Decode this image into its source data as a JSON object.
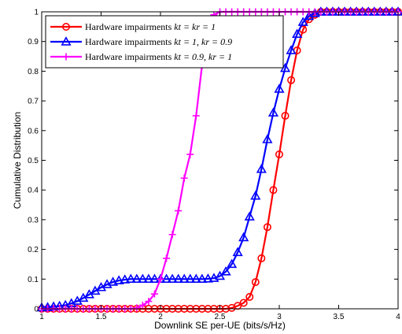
{
  "chart_data": {
    "type": "line",
    "title": "",
    "xlabel": "Downlink SE per-UE (bits/s/Hz)",
    "ylabel": "Cumulative Distribution",
    "xlim": [
      1,
      4
    ],
    "ylim": [
      0,
      1
    ],
    "xticks": [
      1,
      1.5,
      2,
      2.5,
      3,
      3.5,
      4
    ],
    "xtick_labels": [
      "1",
      "1.5",
      "2",
      "2.5",
      "3",
      "3.5",
      "4"
    ],
    "yticks": [
      0,
      0.1,
      0.2,
      0.3,
      0.4,
      0.5,
      0.6,
      0.7,
      0.8,
      0.9,
      1
    ],
    "ytick_labels": [
      "0",
      "0.1",
      "0.2",
      "0.3",
      "0.4",
      "0.5",
      "0.6",
      "0.7",
      "0.8",
      "0.9",
      "1"
    ],
    "grid": false,
    "legend_position": "top-left",
    "series": [
      {
        "name": "Hardware impairments k_t = k_r = 1",
        "legend_prefix": "Hardware impairments ",
        "legend_math": "kt = kr = 1",
        "color": "#ff0000",
        "marker": "circle",
        "x": [
          1.0,
          1.05,
          1.1,
          1.15,
          1.2,
          1.25,
          1.3,
          1.35,
          1.4,
          1.45,
          1.5,
          1.55,
          1.6,
          1.65,
          1.7,
          1.75,
          1.8,
          1.85,
          1.9,
          1.95,
          2.0,
          2.05,
          2.1,
          2.15,
          2.2,
          2.25,
          2.3,
          2.35,
          2.4,
          2.45,
          2.5,
          2.55,
          2.6,
          2.65,
          2.7,
          2.75,
          2.8,
          2.85,
          2.9,
          2.95,
          3.0,
          3.05,
          3.1,
          3.15,
          3.2,
          3.25,
          3.3,
          3.35,
          3.4,
          3.45,
          3.5,
          3.55,
          3.6,
          3.65,
          3.7,
          3.75,
          3.8,
          3.85,
          3.9,
          3.95,
          4.0
        ],
        "y": [
          0,
          0,
          0,
          0,
          0,
          0,
          0,
          0,
          0,
          0,
          0,
          0,
          0,
          0,
          0,
          0,
          0,
          0,
          0,
          0,
          0,
          0,
          0,
          0,
          0,
          0,
          0,
          0,
          0,
          0,
          0,
          0,
          0.003,
          0.01,
          0.02,
          0.04,
          0.09,
          0.17,
          0.275,
          0.4,
          0.52,
          0.65,
          0.77,
          0.87,
          0.94,
          0.975,
          0.99,
          1,
          1,
          1,
          1,
          1,
          1,
          1,
          1,
          1,
          1,
          1,
          1,
          1,
          1
        ]
      },
      {
        "name": "Hardware impairments k_t = 1, k_r = 0.9",
        "legend_prefix": "Hardware impairments ",
        "legend_math": "kt = 1, kr = 0.9",
        "color": "#0000ff",
        "marker": "triangle",
        "x": [
          1.0,
          1.05,
          1.1,
          1.15,
          1.2,
          1.25,
          1.3,
          1.35,
          1.4,
          1.45,
          1.5,
          1.55,
          1.6,
          1.65,
          1.7,
          1.75,
          1.8,
          1.85,
          1.9,
          1.95,
          2.0,
          2.05,
          2.1,
          2.15,
          2.2,
          2.25,
          2.3,
          2.35,
          2.4,
          2.45,
          2.5,
          2.55,
          2.6,
          2.65,
          2.7,
          2.75,
          2.8,
          2.85,
          2.9,
          2.95,
          3.0,
          3.05,
          3.1,
          3.15,
          3.2,
          3.25,
          3.3,
          3.35,
          3.4,
          3.45,
          3.5,
          3.55,
          3.6,
          3.65,
          3.7,
          3.75,
          3.8,
          3.85,
          3.9,
          3.95,
          4.0
        ],
        "y": [
          0.004,
          0.005,
          0.007,
          0.009,
          0.012,
          0.018,
          0.026,
          0.036,
          0.048,
          0.06,
          0.072,
          0.082,
          0.09,
          0.095,
          0.098,
          0.1,
          0.1,
          0.1,
          0.1,
          0.1,
          0.1,
          0.1,
          0.1,
          0.1,
          0.1,
          0.1,
          0.1,
          0.1,
          0.101,
          0.103,
          0.11,
          0.125,
          0.15,
          0.19,
          0.24,
          0.31,
          0.38,
          0.47,
          0.57,
          0.66,
          0.74,
          0.81,
          0.87,
          0.925,
          0.965,
          0.985,
          0.995,
          1,
          1,
          1,
          1,
          1,
          1,
          1,
          1,
          1,
          1,
          1,
          1,
          1,
          1
        ]
      },
      {
        "name": "Hardware impairments k_t = 0.9, k_r = 1",
        "legend_prefix": "Hardware impairments ",
        "legend_math": "kt = 0.9, kr = 1",
        "color": "#ff00ff",
        "marker": "plus",
        "x": [
          1.0,
          1.05,
          1.1,
          1.15,
          1.2,
          1.25,
          1.3,
          1.35,
          1.4,
          1.45,
          1.5,
          1.55,
          1.6,
          1.65,
          1.7,
          1.75,
          1.8,
          1.85,
          1.9,
          1.95,
          2.0,
          2.05,
          2.1,
          2.15,
          2.2,
          2.25,
          2.3,
          2.35,
          2.4,
          2.45,
          2.5,
          2.55,
          2.6,
          2.65,
          2.7,
          2.75,
          2.8,
          2.85,
          2.9,
          2.95,
          3.0,
          3.05,
          3.1,
          3.15,
          3.2,
          3.25,
          3.3,
          3.35,
          3.4,
          3.45,
          3.5,
          3.55,
          3.6,
          3.65,
          3.7,
          3.75,
          3.8,
          3.85,
          3.9,
          3.95,
          4.0
        ],
        "y": [
          0,
          0,
          0,
          0,
          0,
          0,
          0,
          0,
          0,
          0,
          0,
          0,
          0,
          0,
          0,
          0,
          0.003,
          0.012,
          0.025,
          0.05,
          0.1,
          0.17,
          0.25,
          0.33,
          0.44,
          0.52,
          0.65,
          0.82,
          0.96,
          0.99,
          1,
          1,
          1,
          1,
          1,
          1,
          1,
          1,
          1,
          1,
          1,
          1,
          1,
          1,
          1,
          1,
          1,
          1,
          1,
          1,
          1,
          1,
          1,
          1,
          1,
          1,
          1,
          1,
          1,
          1,
          1
        ]
      }
    ]
  }
}
